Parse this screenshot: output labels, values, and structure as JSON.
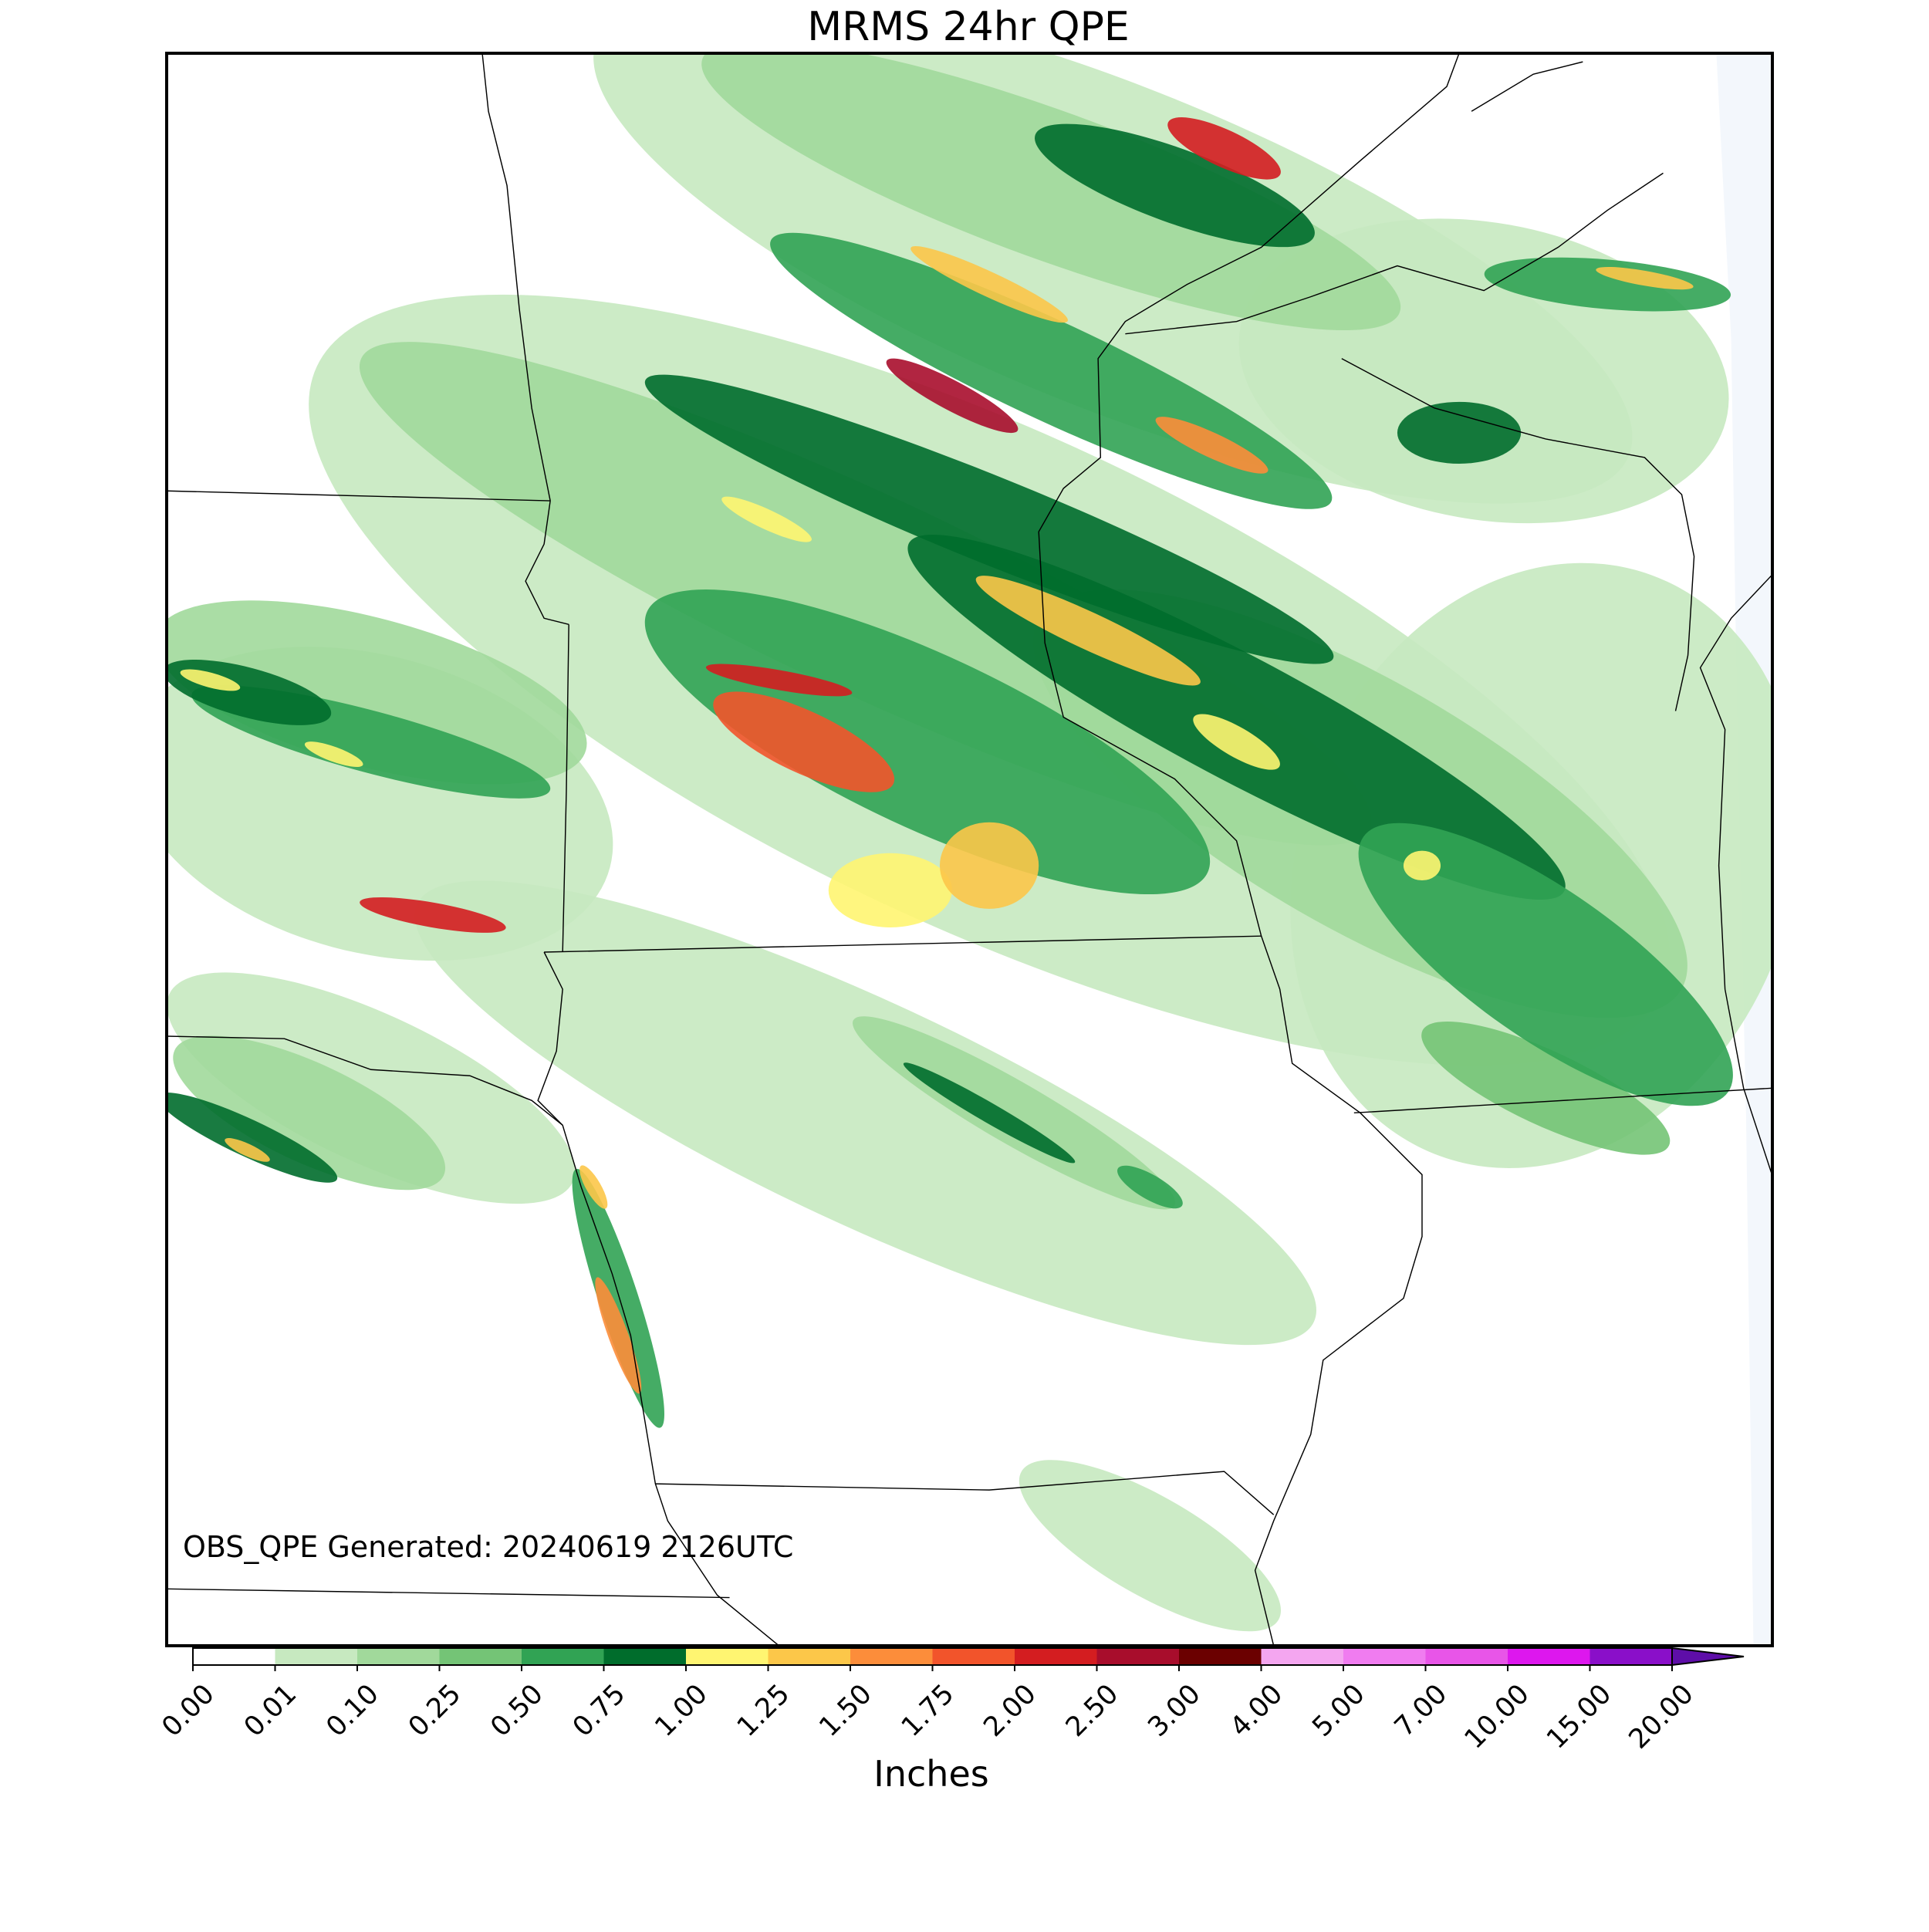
{
  "title": "MRMS 24hr QPE",
  "annotation": "OBS_QPE Generated: 20240619 2126UTC",
  "colorbar": {
    "label": "Inches",
    "ticks": [
      {
        "value": 0,
        "label": "0.00"
      },
      {
        "value": 0.01,
        "label": "0.01"
      },
      {
        "value": 0.1,
        "label": "0.10"
      },
      {
        "value": 0.25,
        "label": "0.25"
      },
      {
        "value": 0.5,
        "label": "0.50"
      },
      {
        "value": 0.75,
        "label": "0.75"
      },
      {
        "value": 1,
        "label": "1.00"
      },
      {
        "value": 1.25,
        "label": "1.25"
      },
      {
        "value": 1.5,
        "label": "1.50"
      },
      {
        "value": 1.75,
        "label": "1.75"
      },
      {
        "value": 2,
        "label": "2.00"
      },
      {
        "value": 2.5,
        "label": "2.50"
      },
      {
        "value": 3,
        "label": "3.00"
      },
      {
        "value": 4,
        "label": "4.00"
      },
      {
        "value": 5,
        "label": "5.00"
      },
      {
        "value": 7,
        "label": "7.00"
      },
      {
        "value": 10,
        "label": "10.00"
      },
      {
        "value": 15,
        "label": "15.00"
      },
      {
        "value": 20,
        "label": "20.00"
      }
    ],
    "colors": [
      "#ffffff",
      "#c7e9c0",
      "#a1d99b",
      "#74c476",
      "#31a354",
      "#006d2c",
      "#fff571",
      "#fcc749",
      "#fc8d3a",
      "#f2542b",
      "#d41d20",
      "#a80d2c",
      "#6b0000",
      "#f4a6f0",
      "#f07cf0",
      "#e855e8",
      "#dd17ee",
      "#8a0fc9"
    ],
    "over_color": "#5e0ea8"
  }
}
